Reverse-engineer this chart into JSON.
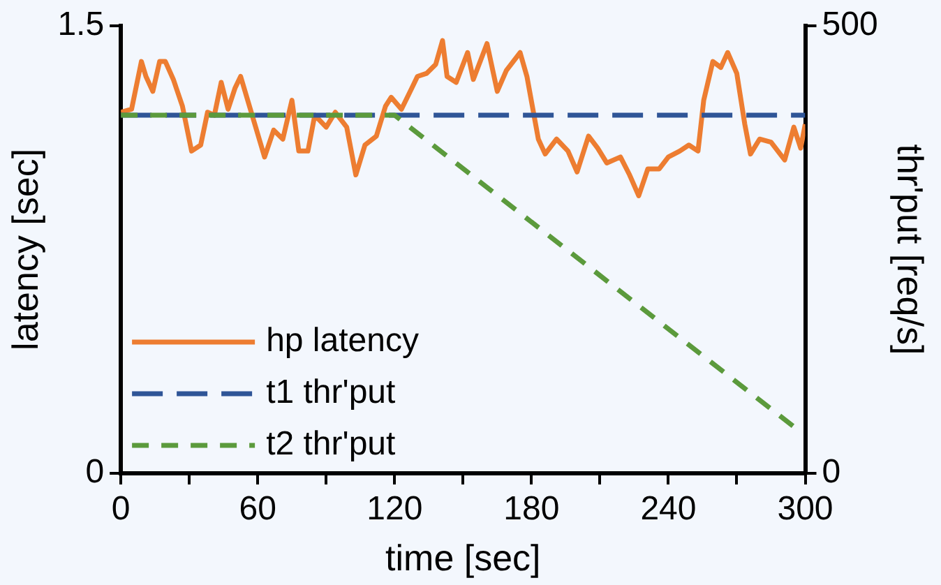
{
  "chart_data": {
    "type": "line",
    "xlabel": "time [sec]",
    "ylabel": "latency [sec]",
    "y2label": "thr'put [req/s]",
    "xlim": [
      0,
      300
    ],
    "xticks": [
      0,
      {
        "value": 30,
        "label": null
      },
      60,
      {
        "value": 90,
        "label": null
      },
      120,
      {
        "value": 150,
        "label": null
      },
      180,
      {
        "value": 210,
        "label": null
      },
      240,
      {
        "value": 270,
        "label": null
      },
      300
    ],
    "ylim": [
      0,
      1.5
    ],
    "yticks": [
      0,
      1.5
    ],
    "y2lim": [
      0,
      500
    ],
    "y2ticks": [
      0,
      500
    ],
    "grid": false,
    "legend": "bottom left",
    "marker": "none",
    "series": [
      {
        "name": "hp latency",
        "color": "#ed7d31",
        "line_style": "solid",
        "x": [
          0,
          4.7,
          9,
          11,
          14,
          17,
          19.5,
          23,
          27,
          31,
          35,
          38,
          41,
          44,
          47,
          50,
          52.5,
          56,
          63,
          67,
          71,
          75,
          78,
          82,
          85,
          90,
          94,
          99,
          103,
          107,
          112,
          116,
          118.5,
          123,
          127.5,
          130,
          134,
          138,
          141,
          143,
          147,
          152,
          154.5,
          160.5,
          165,
          169,
          175,
          178,
          183,
          186,
          191,
          196,
          200,
          205,
          209,
          213,
          219,
          223,
          227,
          231,
          236,
          240,
          245,
          249,
          253,
          255.5,
          259.5,
          263,
          266,
          270,
          273.5,
          276,
          280,
          285,
          291,
          295,
          298,
          300
        ],
        "values": [
          1.21,
          1.22,
          1.38,
          1.33,
          1.28,
          1.38,
          1.38,
          1.32,
          1.23,
          1.08,
          1.1,
          1.21,
          1.2,
          1.31,
          1.22,
          1.29,
          1.33,
          1.24,
          1.06,
          1.15,
          1.12,
          1.25,
          1.08,
          1.08,
          1.2,
          1.16,
          1.21,
          1.16,
          1.0,
          1.1,
          1.13,
          1.23,
          1.26,
          1.22,
          1.29,
          1.33,
          1.34,
          1.37,
          1.45,
          1.33,
          1.31,
          1.41,
          1.32,
          1.44,
          1.28,
          1.35,
          1.41,
          1.33,
          1.12,
          1.07,
          1.12,
          1.08,
          1.01,
          1.13,
          1.09,
          1.04,
          1.06,
          1.0,
          0.93,
          1.02,
          1.02,
          1.06,
          1.08,
          1.1,
          1.08,
          1.25,
          1.38,
          1.36,
          1.41,
          1.34,
          1.17,
          1.07,
          1.12,
          1.11,
          1.05,
          1.16,
          1.09,
          1.17
        ]
      },
      {
        "name": "t1 thr'put",
        "color": "#2f5597",
        "line_style": "dashed",
        "axis": "y2",
        "x": [
          0,
          300
        ],
        "values": [
          400,
          400
        ]
      },
      {
        "name": "t2 thr'put",
        "color": "#5b9a3c",
        "line_style": "dashed",
        "axis": "y2",
        "x": [
          0,
          120,
          296
        ],
        "values": [
          400,
          400,
          50
        ]
      }
    ]
  }
}
